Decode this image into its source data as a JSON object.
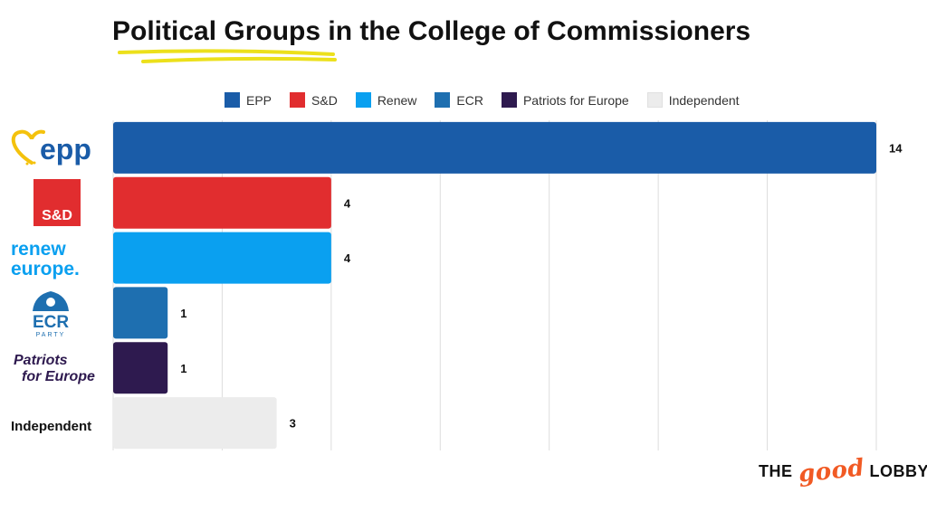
{
  "title": "Political Groups in the College of Commissioners",
  "colors": {
    "title_underline": "#ece01b",
    "grid": "#dddddd",
    "value_label": "#111111"
  },
  "legend": [
    {
      "label": "EPP",
      "color": "#1a5ca8"
    },
    {
      "label": "S&D",
      "color": "#e12d2f"
    },
    {
      "label": "Renew",
      "color": "#0aa0f0"
    },
    {
      "label": "ECR",
      "color": "#1e6fb0"
    },
    {
      "label": "Patriots for Europe",
      "color": "#2e1a4f"
    },
    {
      "label": "Independent",
      "color": "#ececec"
    }
  ],
  "logos": {
    "epp": "epp",
    "sd": "S&D",
    "renew_line1": "renew",
    "renew_line2": "europe.",
    "ecr": "ECR",
    "ecr_sub": "PARTY",
    "patriots_line1": "Patriots",
    "patriots_line2": "for Europe",
    "independent": "Independent"
  },
  "footer": {
    "the": "THE",
    "good": "good",
    "lobby": "LOBBY"
  },
  "chart_data": {
    "type": "bar",
    "orientation": "horizontal",
    "title": "Political Groups in the College of Commissioners",
    "categories": [
      "EPP",
      "S&D",
      "Renew",
      "ECR",
      "Patriots for Europe",
      "Independent"
    ],
    "values": [
      14,
      4,
      4,
      1,
      1,
      3
    ],
    "colors": [
      "#1a5ca8",
      "#e12d2f",
      "#0aa0f0",
      "#1e6fb0",
      "#2e1a4f",
      "#ececec"
    ],
    "xlim": [
      0,
      14
    ],
    "grid": true,
    "legend_position": "top",
    "xlabel": "",
    "ylabel": ""
  }
}
